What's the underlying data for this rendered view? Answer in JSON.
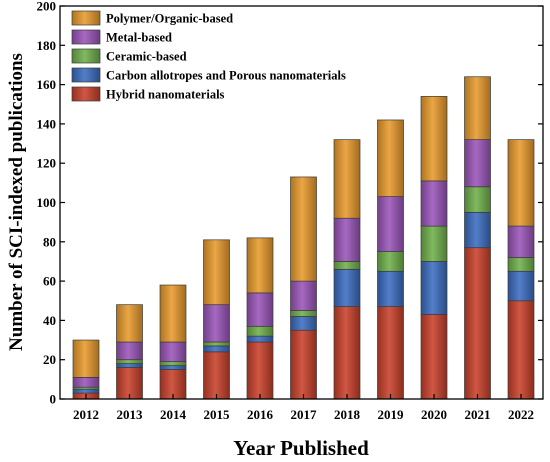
{
  "chart_data": {
    "type": "bar",
    "stacked": true,
    "categories": [
      "2012",
      "2013",
      "2014",
      "2015",
      "2016",
      "2017",
      "2018",
      "2019",
      "2020",
      "2021",
      "2022"
    ],
    "series": [
      {
        "name": "Hybrid nanomaterials",
        "color": "#c8402a",
        "values": [
          3,
          16,
          15,
          24,
          29,
          35,
          47,
          47,
          43,
          77,
          50
        ]
      },
      {
        "name": "Carbon allotropes and Porous nanomaterials",
        "color": "#3b6cc0",
        "values": [
          2,
          2,
          2,
          3,
          3,
          7,
          19,
          18,
          27,
          18,
          15
        ]
      },
      {
        "name": "Ceramic-based",
        "color": "#6fb04a",
        "values": [
          1,
          2,
          2,
          2,
          5,
          3,
          4,
          10,
          18,
          13,
          7
        ]
      },
      {
        "name": "Metal-based",
        "color": "#9a55b8",
        "values": [
          5,
          9,
          10,
          19,
          17,
          15,
          22,
          28,
          23,
          24,
          16
        ]
      },
      {
        "name": "Polymer/Organic-based",
        "color": "#e89a2c",
        "values": [
          19,
          19,
          29,
          33,
          28,
          53,
          40,
          39,
          43,
          32,
          44
        ]
      }
    ],
    "legend_order": [
      "Polymer/Organic-based",
      "Metal-based",
      "Ceramic-based",
      "Carbon allotropes and Porous nanomaterials",
      "Hybrid nanomaterials"
    ],
    "legend_position": "top-left",
    "xlabel": "Year Published",
    "ylabel": "Number of SCI-indexed publications",
    "ylim": [
      0,
      200
    ],
    "yticks": [
      0,
      20,
      40,
      60,
      80,
      100,
      120,
      140,
      160,
      180,
      200
    ],
    "grid": false
  }
}
